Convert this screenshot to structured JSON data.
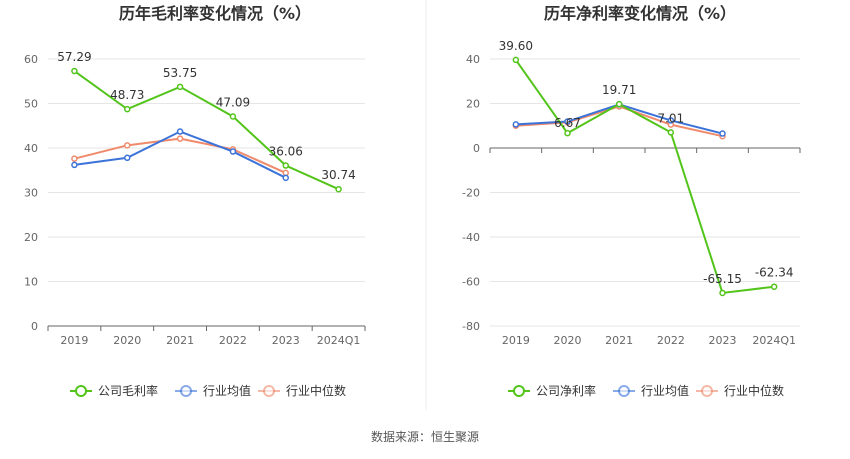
{
  "source": "数据来源：恒生聚源",
  "chart_data": [
    {
      "type": "line",
      "title": "历年毛利率变化情况（%）",
      "categories": [
        "2019",
        "2020",
        "2021",
        "2022",
        "2023",
        "2024Q1"
      ],
      "ylim": [
        0,
        60
      ],
      "yticks": [
        "0",
        "10",
        "20",
        "30",
        "40",
        "50",
        "60"
      ],
      "grid": true,
      "legend": "bottom",
      "series": [
        {
          "name": "公司毛利率",
          "color": "#52c41a",
          "values": [
            57.29,
            48.73,
            53.75,
            47.09,
            36.06,
            30.74
          ],
          "labels": [
            "57.29",
            "48.73",
            "53.75",
            "47.09",
            "36.06",
            "30.74"
          ]
        },
        {
          "name": "行业均值",
          "color": "#3b73d9",
          "values": [
            36.2,
            37.8,
            43.7,
            39.2,
            33.3,
            null
          ]
        },
        {
          "name": "行业中位数",
          "color": "#f08a6c",
          "values": [
            37.6,
            40.6,
            42.1,
            39.7,
            34.4,
            null
          ]
        }
      ]
    },
    {
      "type": "line",
      "title": "历年净利率变化情况（%）",
      "categories": [
        "2019",
        "2020",
        "2021",
        "2022",
        "2023",
        "2024Q1"
      ],
      "ylim": [
        -80,
        40
      ],
      "yticks": [
        "-80",
        "-60",
        "-40",
        "-20",
        "0",
        "20",
        "40"
      ],
      "grid": true,
      "legend": "bottom",
      "series": [
        {
          "name": "公司净利率",
          "color": "#52c41a",
          "values": [
            39.6,
            6.67,
            19.71,
            7.01,
            -65.15,
            -62.34
          ],
          "labels": [
            "39.60",
            "6.67",
            "19.71",
            "7.01",
            "-65.15",
            "-62.34"
          ]
        },
        {
          "name": "行业均值",
          "color": "#3b73d9",
          "values": [
            10.6,
            11.9,
            19.6,
            12.4,
            6.5,
            null
          ]
        },
        {
          "name": "行业中位数",
          "color": "#f08a6c",
          "values": [
            10.0,
            11.5,
            18.7,
            10.5,
            5.3,
            null
          ]
        }
      ]
    }
  ]
}
